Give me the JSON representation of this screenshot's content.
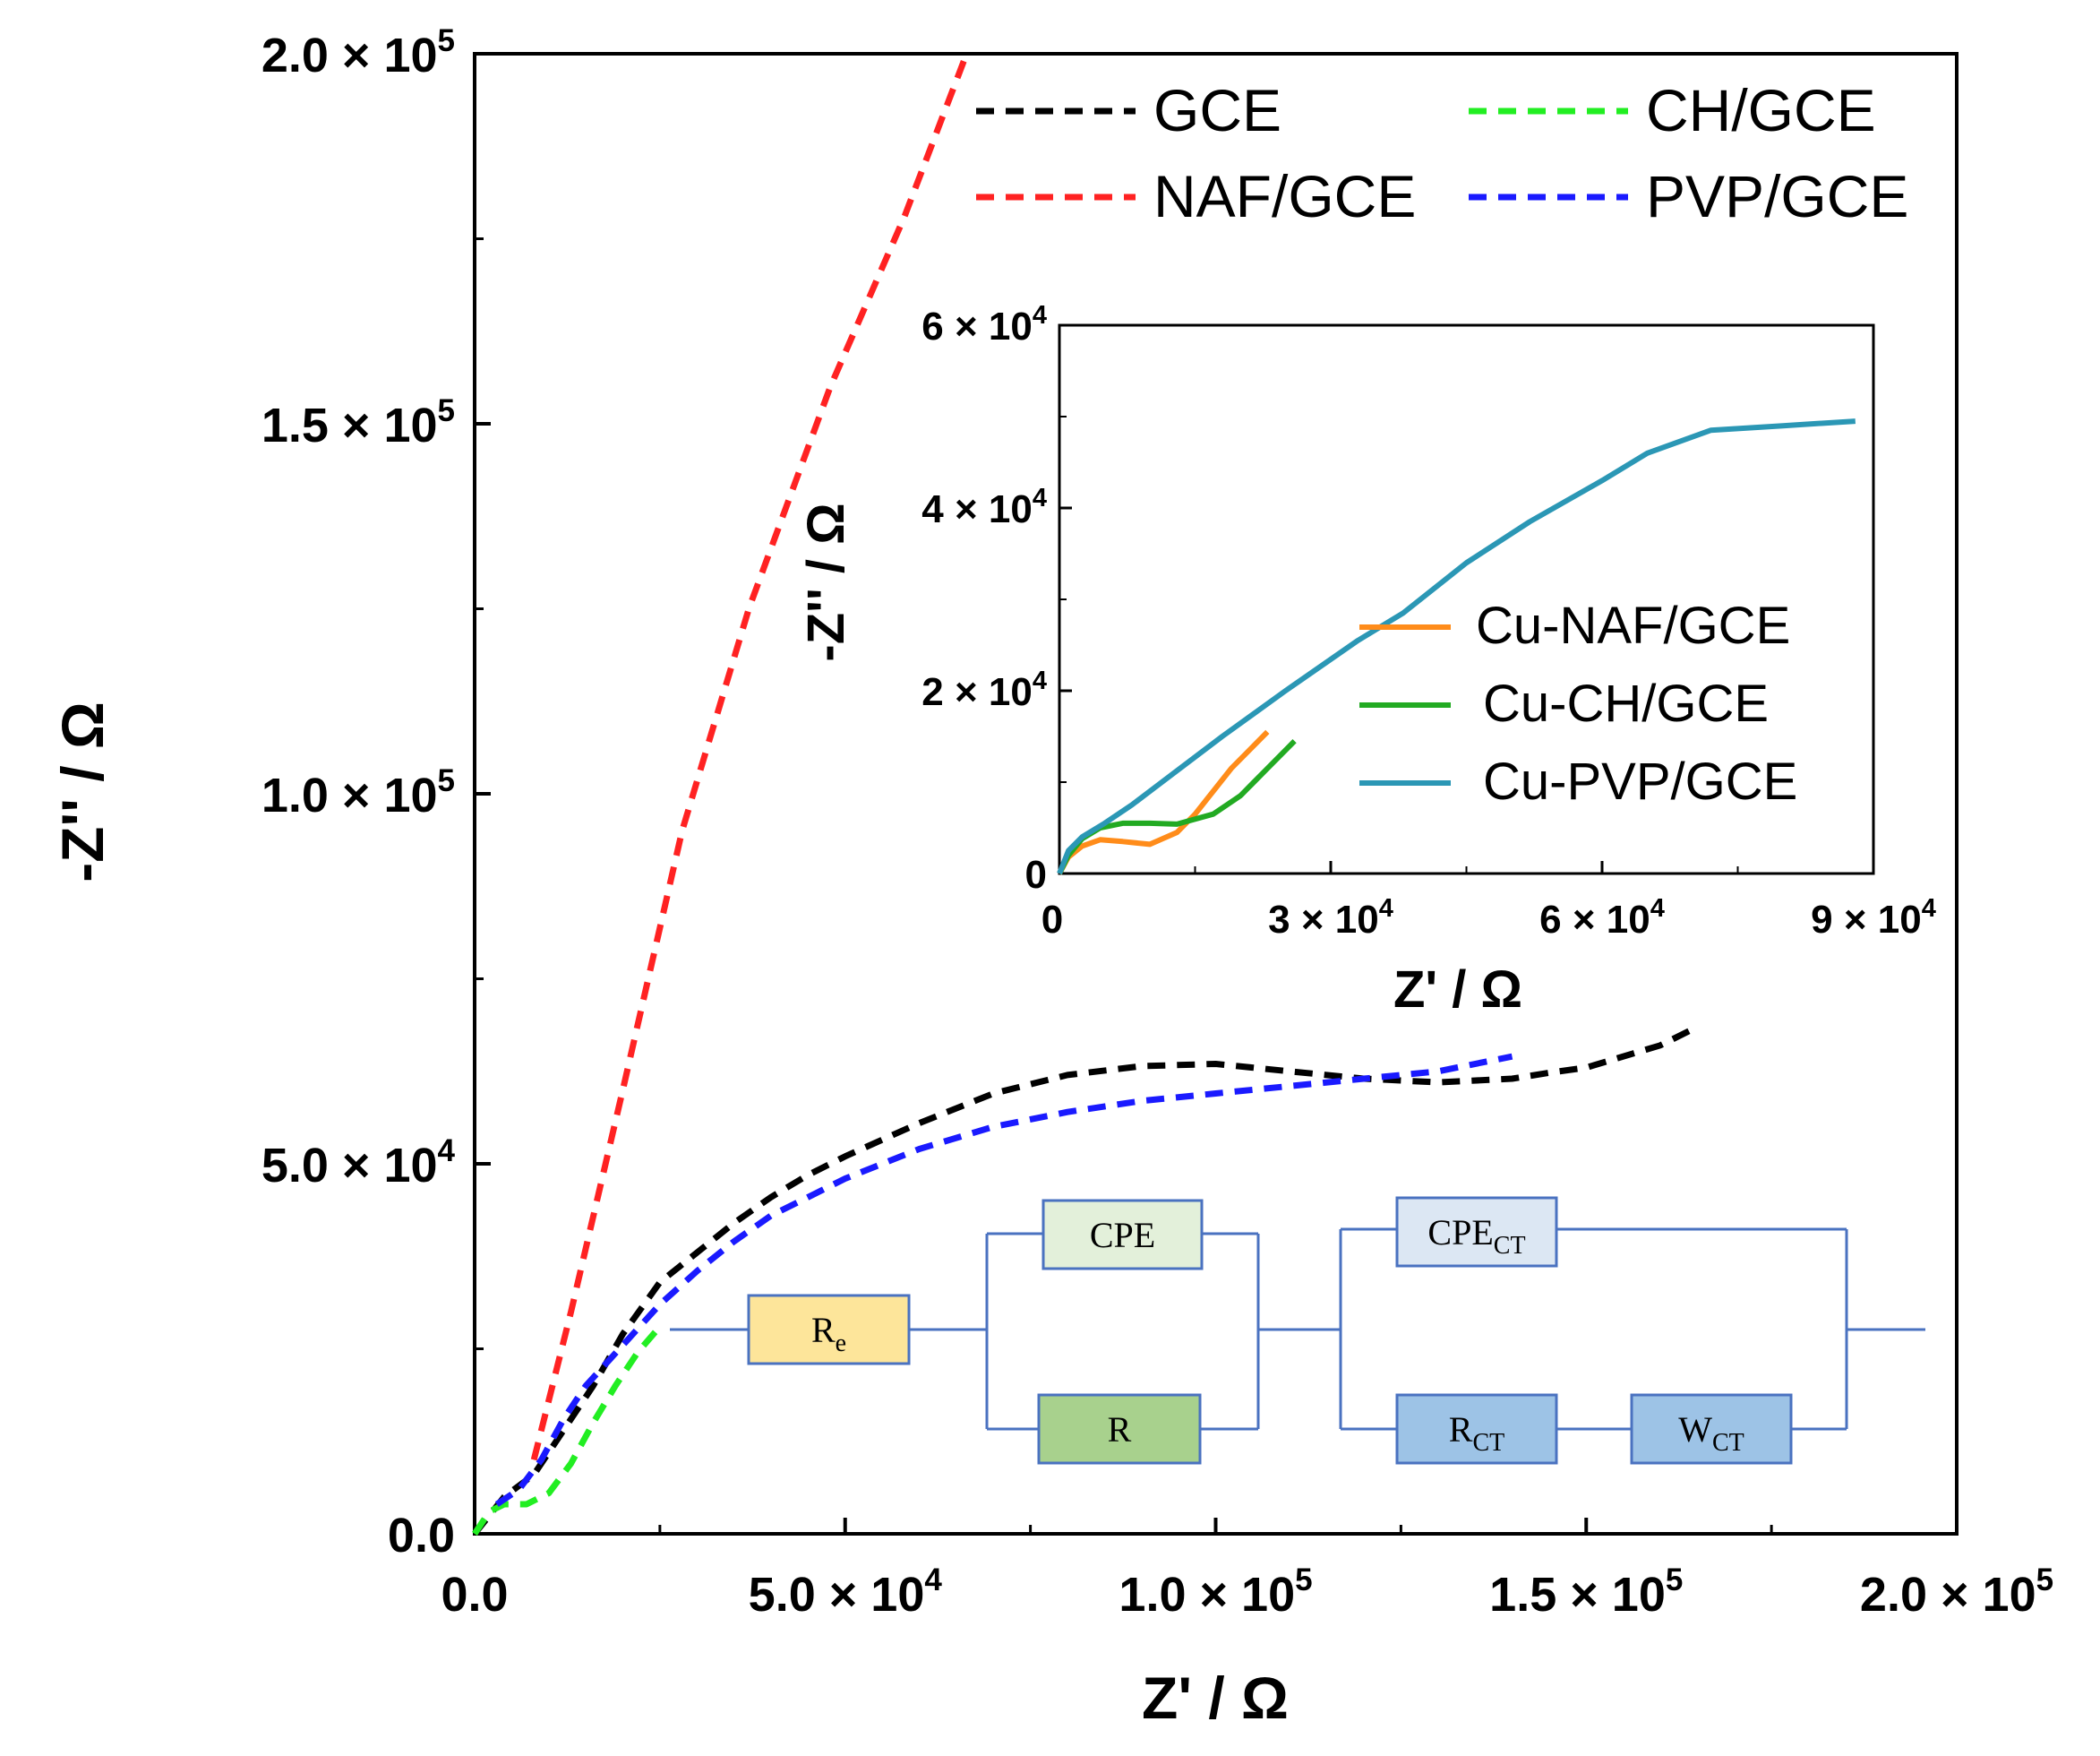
{
  "chart_data": [
    {
      "type": "line",
      "xlabel": "Z' / Ω",
      "ylabel": "-Z'' / Ω",
      "xlim": [
        0,
        200000
      ],
      "ylim": [
        0,
        200000
      ],
      "x_ticks": [
        0,
        50000,
        100000,
        150000,
        200000
      ],
      "x_tick_labels": [
        {
          "mant": "0.0",
          "exp": ""
        },
        {
          "mant": "5.0 × 10",
          "exp": "4"
        },
        {
          "mant": "1.0 × 10",
          "exp": "5"
        },
        {
          "mant": "1.5 × 10",
          "exp": "5"
        },
        {
          "mant": "2.0 × 10",
          "exp": "5"
        }
      ],
      "y_ticks": [
        0,
        50000,
        100000,
        150000,
        200000
      ],
      "y_tick_labels": [
        {
          "mant": "0.0",
          "exp": ""
        },
        {
          "mant": "5.0 × 10",
          "exp": "4"
        },
        {
          "mant": "1.0 × 10",
          "exp": "5"
        },
        {
          "mant": "1.5 × 10",
          "exp": "5"
        },
        {
          "mant": "2.0 × 10",
          "exp": "5"
        }
      ],
      "legend_position": "top-right",
      "series": [
        {
          "name": "GCE",
          "color": "#000000",
          "dashed": true,
          "x": [
            0,
            4000,
            8000,
            12000,
            16000,
            20000,
            25000,
            30000,
            35000,
            40000,
            45000,
            50000,
            60000,
            70000,
            80000,
            90000,
            100000,
            110000,
            120000,
            130000,
            140000,
            145000,
            150000,
            160000,
            165000
          ],
          "y": [
            0,
            5000,
            8000,
            14000,
            20000,
            27000,
            34000,
            38000,
            42000,
            45500,
            48500,
            51000,
            55500,
            59500,
            62000,
            63200,
            63500,
            62500,
            61500,
            61000,
            61500,
            62300,
            63000,
            66000,
            68500
          ]
        },
        {
          "name": "CH/GCE",
          "color": "#22ee22",
          "dashed": true,
          "x": [
            0,
            2000,
            4000,
            7000,
            10000,
            13000,
            16000,
            19000,
            22000,
            25000
          ],
          "y": [
            0,
            3000,
            4000,
            4000,
            5500,
            9500,
            15000,
            20000,
            24500,
            28000
          ]
        },
        {
          "name": "NAF/GCE",
          "color": "#ff2222",
          "dashed": true,
          "x": [
            8000,
            13000,
            20000,
            28000,
            37000,
            48000,
            58000,
            66000
          ],
          "y": [
            10000,
            30000,
            60000,
            95000,
            125000,
            155000,
            178000,
            199000
          ]
        },
        {
          "name": "PVP/GCE",
          "color": "#1a1aff",
          "dashed": true,
          "x": [
            3000,
            6000,
            9000,
            12000,
            15000,
            20000,
            25000,
            30000,
            35000,
            40000,
            45000,
            50000,
            60000,
            70000,
            80000,
            90000,
            100000,
            110000,
            120000,
            130000,
            140000
          ],
          "y": [
            4000,
            6000,
            10000,
            15500,
            20000,
            25500,
            31000,
            35500,
            39500,
            43000,
            45500,
            48000,
            52000,
            55000,
            57000,
            58500,
            59500,
            60500,
            61500,
            62500,
            64500
          ]
        }
      ]
    },
    {
      "type": "line",
      "inset": true,
      "xlabel": "Z' / Ω",
      "ylabel": "-Z'' / Ω",
      "xlim": [
        0,
        90000
      ],
      "ylim": [
        0,
        60000
      ],
      "x_ticks": [
        0,
        30000,
        60000,
        90000
      ],
      "x_tick_labels": [
        {
          "mant": "0",
          "exp": ""
        },
        {
          "mant": "3 × 10",
          "exp": "4"
        },
        {
          "mant": "6 × 10",
          "exp": "4"
        },
        {
          "mant": "9 × 10",
          "exp": "4"
        }
      ],
      "y_ticks": [
        0,
        20000,
        40000,
        60000
      ],
      "y_tick_labels": [
        {
          "mant": "0",
          "exp": ""
        },
        {
          "mant": "2 × 10",
          "exp": "4"
        },
        {
          "mant": "4 × 10",
          "exp": "4"
        },
        {
          "mant": "6 × 10",
          "exp": "4"
        }
      ],
      "legend_position": "center-right",
      "series": [
        {
          "name": "Cu-NAF/GCE",
          "color": "#ff8c1a",
          "x": [
            0,
            1000,
            2500,
            4500,
            7000,
            10000,
            13000,
            15000,
            17000,
            19000,
            21000,
            23000
          ],
          "y": [
            0,
            1800,
            3000,
            3700,
            3500,
            3200,
            4500,
            6500,
            9000,
            11500,
            13500,
            15500
          ]
        },
        {
          "name": "Cu-CH/GCE",
          "color": "#22aa22",
          "x": [
            0,
            1000,
            2500,
            4500,
            7000,
            10000,
            13000,
            17000,
            20000,
            23000,
            26000
          ],
          "y": [
            0,
            2000,
            3800,
            5000,
            5500,
            5500,
            5400,
            6500,
            8500,
            11500,
            14500
          ]
        },
        {
          "name": "Cu-PVP/GCE",
          "color": "#2b97b5",
          "x": [
            0,
            1000,
            2500,
            5000,
            8000,
            12000,
            18000,
            25000,
            33000,
            38000,
            45000,
            52000,
            60000,
            65000,
            72000,
            80000,
            88000
          ],
          "y": [
            0,
            2500,
            4000,
            5500,
            7500,
            10500,
            15000,
            20000,
            25500,
            28500,
            34000,
            38500,
            43000,
            46000,
            48500,
            49000,
            49500
          ]
        }
      ]
    }
  ],
  "circuit": {
    "re_label": "R",
    "re_sub": "e",
    "cpe_label": "CPE",
    "r_label": "R",
    "cpect_label": "CPE",
    "cpect_sub": "CT",
    "rct_label": "R",
    "rct_sub": "CT",
    "wct_label": "W",
    "wct_sub": "CT",
    "colors": {
      "line": "#4a72c0",
      "re": "#fde59a",
      "cpe": "#e3f0da",
      "r": "#a8d18d",
      "cpect": "#dce7f3",
      "rct": "#9dc3e6",
      "wct": "#9dc3e6"
    }
  }
}
